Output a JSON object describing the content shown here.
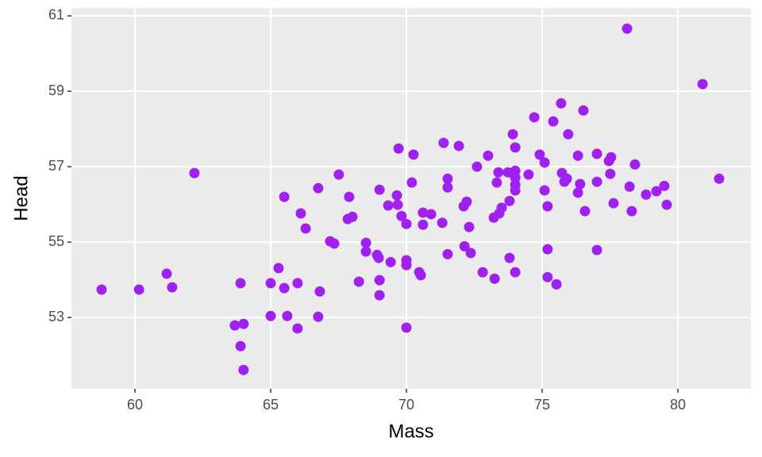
{
  "chart_data": {
    "type": "scatter",
    "x_label": "Mass",
    "y_label": "Head",
    "color": "#a020f0",
    "grid": true,
    "xlim": [
      57.66,
      82.69
    ],
    "ylim": [
      51.11,
      61.21
    ],
    "xticks": [
      60,
      65,
      70,
      75,
      80
    ],
    "yticks": [
      53,
      55,
      57,
      59,
      61
    ],
    "series": [
      {
        "x": [
          58.77,
          60.15,
          61.17,
          61.37,
          62.19,
          63.89,
          63.68,
          64.0,
          63.89,
          64.0,
          65.0,
          65.29,
          65.5,
          65.5,
          65.0,
          65.61,
          65.99,
          65.99,
          66.11,
          66.29,
          66.75,
          66.81,
          66.75,
          67.19,
          67.34,
          67.51,
          67.84,
          68.01,
          67.89,
          68.25,
          68.51,
          68.51,
          68.92,
          68.98,
          69.01,
          69.01,
          69.01,
          69.33,
          69.42,
          69.65,
          69.71,
          69.68,
          69.82,
          70.0,
          70.0,
          70.0,
          70.0,
          70.2,
          70.26,
          70.47,
          70.53,
          70.61,
          70.61,
          70.91,
          71.32,
          71.37,
          71.52,
          71.52,
          71.52,
          71.93,
          72.11,
          72.22,
          72.14,
          72.31,
          72.37,
          72.6,
          72.81,
          73.01,
          73.25,
          73.22,
          73.33,
          73.39,
          73.42,
          73.51,
          73.74,
          73.8,
          73.8,
          73.92,
          73.92,
          74.01,
          74.01,
          74.01,
          74.01,
          74.01,
          74.01,
          74.5,
          74.71,
          74.91,
          75.09,
          75.09,
          75.2,
          75.2,
          75.2,
          75.41,
          75.53,
          75.7,
          75.73,
          75.82,
          75.91,
          75.96,
          76.32,
          76.32,
          76.4,
          76.52,
          76.58,
          77.02,
          77.02,
          77.02,
          77.46,
          77.54,
          77.51,
          77.63,
          78.13,
          78.22,
          78.3,
          78.42,
          78.83,
          79.21,
          79.5,
          79.59,
          80.91,
          81.52
        ],
        "y": [
          53.74,
          53.74,
          54.16,
          53.8,
          56.83,
          53.91,
          52.79,
          52.83,
          52.24,
          51.61,
          53.91,
          54.31,
          56.2,
          53.78,
          53.04,
          53.04,
          53.91,
          52.71,
          55.76,
          55.36,
          56.43,
          53.69,
          53.02,
          55.02,
          54.96,
          56.79,
          55.61,
          55.67,
          56.2,
          53.95,
          54.98,
          54.75,
          54.66,
          54.58,
          56.39,
          53.99,
          53.59,
          55.97,
          54.47,
          56.24,
          57.48,
          55.99,
          55.69,
          55.48,
          54.52,
          54.39,
          52.73,
          56.58,
          57.32,
          54.2,
          54.12,
          55.78,
          55.46,
          55.74,
          55.51,
          57.63,
          56.68,
          56.45,
          54.68,
          57.55,
          55.95,
          56.07,
          54.89,
          55.4,
          54.71,
          57.0,
          54.2,
          57.29,
          54.03,
          55.65,
          56.58,
          56.85,
          55.76,
          55.91,
          56.85,
          56.09,
          54.58,
          57.86,
          56.83,
          57.51,
          56.89,
          56.71,
          56.52,
          56.37,
          54.2,
          56.79,
          58.31,
          57.32,
          57.11,
          56.37,
          55.95,
          54.81,
          54.07,
          58.2,
          53.88,
          58.68,
          56.83,
          56.6,
          56.68,
          57.86,
          57.29,
          56.31,
          56.54,
          58.49,
          55.82,
          57.34,
          56.6,
          54.79,
          57.15,
          57.25,
          56.81,
          56.03,
          60.66,
          56.47,
          55.82,
          57.06,
          56.26,
          56.35,
          56.49,
          55.99,
          59.19,
          56.68
        ]
      }
    ]
  }
}
